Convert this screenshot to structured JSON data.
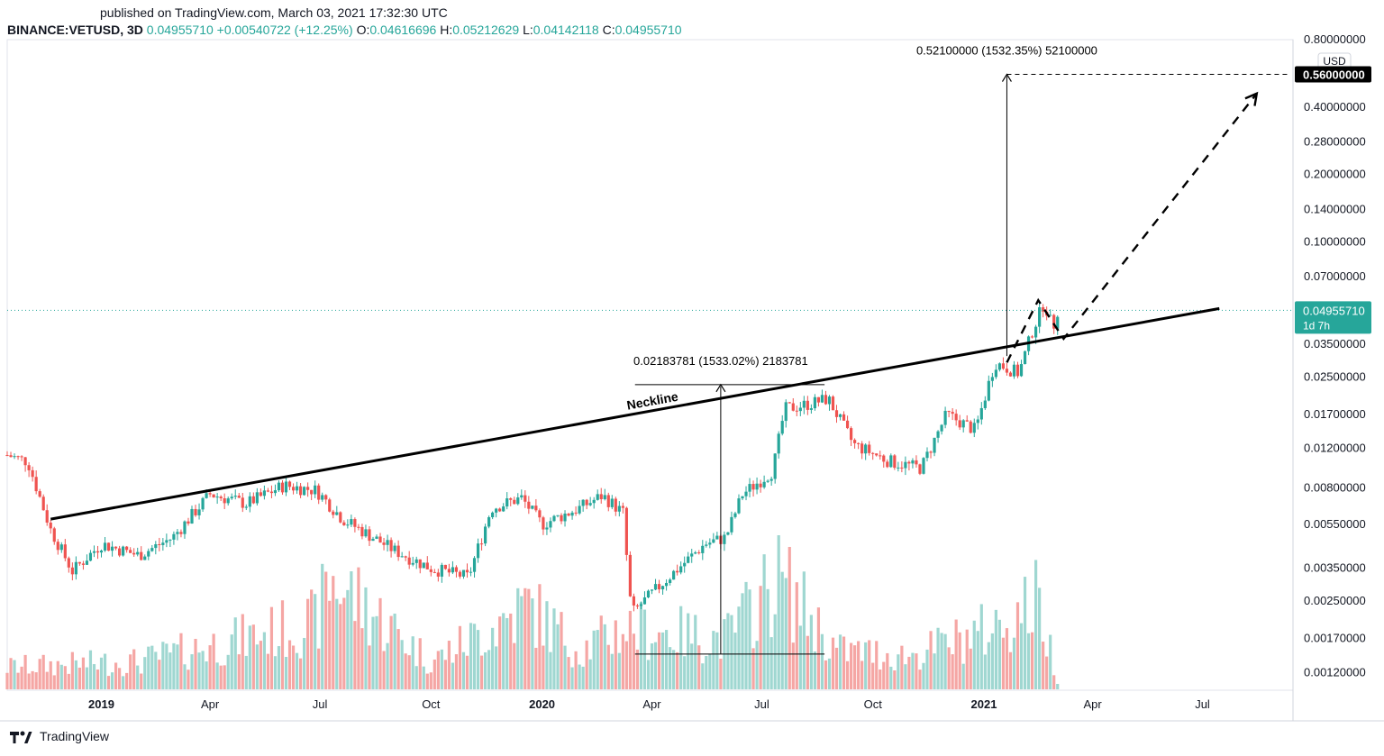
{
  "header": {
    "published": "published on TradingView.com, March 03, 2021 17:32:30 UTC",
    "symbol": "BINANCE:VETUSD, 3D",
    "last": "0.04955710",
    "change": "+0.00540722 (+12.25%)",
    "o_label": "O:",
    "o_value": "0.04616696",
    "h_label": "H:",
    "h_value": "0.05212629",
    "l_label": "L:",
    "l_value": "0.04142118",
    "c_label": "C:",
    "c_value": "0.04955710"
  },
  "footer": {
    "brand": "TradingView"
  },
  "colors": {
    "up": "#26a69a",
    "down": "#ef5350",
    "vol_up": "#9fd7d1",
    "vol_down": "#f5a6a4",
    "price_line": "#26a69a"
  },
  "chart_data": {
    "type": "candlestick",
    "y_scale": "log",
    "currency": "USD",
    "ylim": [
      0.001,
      0.8
    ],
    "y_ticks": [
      {
        "value": 0.8,
        "label": "0.80000000"
      },
      {
        "value": 0.4,
        "label": "0.40000000"
      },
      {
        "value": 0.28,
        "label": "0.28000000"
      },
      {
        "value": 0.2,
        "label": "0.20000000"
      },
      {
        "value": 0.14,
        "label": "0.14000000"
      },
      {
        "value": 0.1,
        "label": "0.10000000"
      },
      {
        "value": 0.07,
        "label": "0.07000000"
      },
      {
        "value": 0.035,
        "label": "0.03500000"
      },
      {
        "value": 0.025,
        "label": "0.02500000"
      },
      {
        "value": 0.017,
        "label": "0.01700000"
      },
      {
        "value": 0.012,
        "label": "0.01200000"
      },
      {
        "value": 0.008,
        "label": "0.00800000"
      },
      {
        "value": 0.0055,
        "label": "0.00550000"
      },
      {
        "value": 0.0035,
        "label": "0.00350000"
      },
      {
        "value": 0.0025,
        "label": "0.00250000"
      },
      {
        "value": 0.0017,
        "label": "0.00170000"
      },
      {
        "value": 0.0012,
        "label": "0.00120000"
      }
    ],
    "x_ticks": [
      {
        "date": "2019-01-01",
        "label": "2019",
        "bold": true
      },
      {
        "date": "2019-04-01",
        "label": "Apr",
        "bold": false
      },
      {
        "date": "2019-07-01",
        "label": "Jul",
        "bold": false
      },
      {
        "date": "2019-10-01",
        "label": "Oct",
        "bold": false
      },
      {
        "date": "2020-01-01",
        "label": "2020",
        "bold": true
      },
      {
        "date": "2020-04-01",
        "label": "Apr",
        "bold": false
      },
      {
        "date": "2020-07-01",
        "label": "Jul",
        "bold": false
      },
      {
        "date": "2020-10-01",
        "label": "Oct",
        "bold": false
      },
      {
        "date": "2021-01-01",
        "label": "2021",
        "bold": true
      },
      {
        "date": "2021-04-01",
        "label": "Apr",
        "bold": false
      },
      {
        "date": "2021-07-01",
        "label": "Jul",
        "bold": false
      }
    ],
    "xlim": [
      "2018-10-15",
      "2021-09-14"
    ],
    "price_series": [
      {
        "date": "2018-10-15",
        "price": 0.0112
      },
      {
        "date": "2018-11-01",
        "price": 0.0105
      },
      {
        "date": "2018-11-20",
        "price": 0.0052
      },
      {
        "date": "2018-12-08",
        "price": 0.0034
      },
      {
        "date": "2019-01-01",
        "price": 0.0045
      },
      {
        "date": "2019-02-01",
        "price": 0.004
      },
      {
        "date": "2019-03-01",
        "price": 0.0048
      },
      {
        "date": "2019-04-01",
        "price": 0.0075
      },
      {
        "date": "2019-05-01",
        "price": 0.0068
      },
      {
        "date": "2019-06-01",
        "price": 0.0082
      },
      {
        "date": "2019-06-28",
        "price": 0.0078
      },
      {
        "date": "2019-07-20",
        "price": 0.0058
      },
      {
        "date": "2019-09-01",
        "price": 0.0042
      },
      {
        "date": "2019-10-01",
        "price": 0.0035
      },
      {
        "date": "2019-11-01",
        "price": 0.0032
      },
      {
        "date": "2019-11-20",
        "price": 0.0065
      },
      {
        "date": "2019-12-15",
        "price": 0.0072
      },
      {
        "date": "2020-01-01",
        "price": 0.0055
      },
      {
        "date": "2020-02-01",
        "price": 0.0065
      },
      {
        "date": "2020-02-20",
        "price": 0.0074
      },
      {
        "date": "2020-03-08",
        "price": 0.0062
      },
      {
        "date": "2020-03-15",
        "price": 0.0022
      },
      {
        "date": "2020-04-15",
        "price": 0.0032
      },
      {
        "date": "2020-05-15",
        "price": 0.0045
      },
      {
        "date": "2020-06-01",
        "price": 0.0048
      },
      {
        "date": "2020-06-15",
        "price": 0.0075
      },
      {
        "date": "2020-07-10",
        "price": 0.0095
      },
      {
        "date": "2020-07-20",
        "price": 0.018
      },
      {
        "date": "2020-08-10",
        "price": 0.019
      },
      {
        "date": "2020-08-25",
        "price": 0.02
      },
      {
        "date": "2020-09-15",
        "price": 0.0125
      },
      {
        "date": "2020-10-15",
        "price": 0.0105
      },
      {
        "date": "2020-11-10",
        "price": 0.0098
      },
      {
        "date": "2020-12-01",
        "price": 0.017
      },
      {
        "date": "2020-12-25",
        "price": 0.0145
      },
      {
        "date": "2021-01-10",
        "price": 0.029
      },
      {
        "date": "2021-01-30",
        "price": 0.026
      },
      {
        "date": "2021-02-10",
        "price": 0.04
      },
      {
        "date": "2021-02-20",
        "price": 0.054
      },
      {
        "date": "2021-02-27",
        "price": 0.041
      },
      {
        "date": "2021-03-03",
        "price": 0.0496
      }
    ],
    "volume_profile": [
      {
        "date": "2018-10-15",
        "v": 0.2
      },
      {
        "date": "2019-02-01",
        "v": 0.25
      },
      {
        "date": "2019-06-28",
        "v": 0.6
      },
      {
        "date": "2019-07-10",
        "v": 1.0
      },
      {
        "date": "2019-10-01",
        "v": 0.25
      },
      {
        "date": "2019-11-20",
        "v": 0.55
      },
      {
        "date": "2019-12-20",
        "v": 0.75
      },
      {
        "date": "2020-02-01",
        "v": 0.35
      },
      {
        "date": "2020-03-10",
        "v": 0.55
      },
      {
        "date": "2020-06-01",
        "v": 0.45
      },
      {
        "date": "2020-07-15",
        "v": 1.0
      },
      {
        "date": "2020-09-01",
        "v": 0.35
      },
      {
        "date": "2020-11-01",
        "v": 0.3
      },
      {
        "date": "2021-01-10",
        "v": 0.55
      },
      {
        "date": "2021-02-15",
        "v": 0.8
      },
      {
        "date": "2021-03-03",
        "v": 0.1
      }
    ],
    "neckline": {
      "label": "Neckline",
      "start": {
        "date": "2018-11-20",
        "price": 0.0058
      },
      "end": {
        "date": "2021-07-15",
        "price": 0.0505
      }
    },
    "projections": [
      {
        "label": "0.02183781 (1533.02%) 2183781",
        "date": "2020-05-28",
        "from": 0.00145,
        "to": 0.0231,
        "base_start": "2020-03-18",
        "base_end": "2020-08-22",
        "top_start": "2020-03-18",
        "top_end": "2020-08-22"
      },
      {
        "label": "0.52100000 (1532.35%) 52100000",
        "date": "2021-01-20",
        "from": 0.031,
        "to": 0.56,
        "top_end": "2021-09-10"
      }
    ],
    "dashed_path": [
      {
        "date": "2021-01-20",
        "price": 0.029
      },
      {
        "date": "2021-02-15",
        "price": 0.055
      },
      {
        "date": "2021-03-08",
        "price": 0.037
      },
      {
        "date": "2021-08-15",
        "price": 0.46
      }
    ],
    "price_labels": [
      {
        "value": 0.56,
        "label": "0.56000000",
        "style": "dark"
      },
      {
        "value": 0.0496,
        "label": "0.04955710",
        "sub": "1d 7h",
        "style": "current"
      }
    ]
  }
}
